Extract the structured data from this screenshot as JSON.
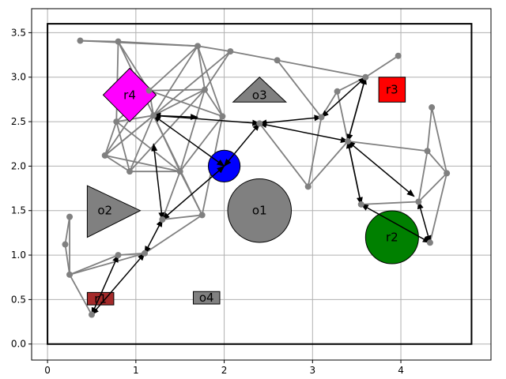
{
  "chart_data": {
    "type": "scatter",
    "title": "",
    "xlabel": "",
    "ylabel": "",
    "xlim": [
      -0.18,
      5.02
    ],
    "ylim": [
      -0.18,
      3.77
    ],
    "xticks": [
      0,
      1,
      2,
      3,
      4
    ],
    "yticks": [
      0.0,
      0.5,
      1.0,
      1.5,
      2.0,
      2.5,
      3.0,
      3.5
    ],
    "xtick_labels": [
      "0",
      "1",
      "2",
      "3",
      "4"
    ],
    "ytick_labels": [
      "0.0",
      "0.5",
      "1.0",
      "1.5",
      "2.0",
      "2.5",
      "3.0",
      "3.5"
    ],
    "grid": true,
    "boundary": [
      [
        0,
        0
      ],
      [
        4.8,
        0
      ],
      [
        4.8,
        3.6
      ],
      [
        0,
        3.6
      ]
    ],
    "colors": {
      "grid": "#b0b0b0",
      "edge": "#808080",
      "node": "#808080",
      "path": "#000000",
      "robot": "#0000ff",
      "obstacle": "#808080",
      "r1": "#a52a2a",
      "r2": "#008000",
      "r3": "#ff0000",
      "r4": "#ff00ff"
    },
    "robot": {
      "x": 2.0,
      "y": 2.0,
      "r": 0.18
    },
    "regions": [
      {
        "label": "r1",
        "shape": "rect",
        "x": 0.45,
        "y": 0.44,
        "w": 0.3,
        "h": 0.14,
        "color": "#a52a2a"
      },
      {
        "label": "r2",
        "shape": "circle",
        "x": 3.9,
        "y": 1.2,
        "r": 0.3,
        "color": "#008000"
      },
      {
        "label": "r3",
        "shape": "rect",
        "x": 3.75,
        "y": 2.72,
        "w": 0.3,
        "h": 0.28,
        "color": "#ff0000"
      },
      {
        "label": "r4",
        "shape": "diamond",
        "x": 0.93,
        "y": 2.8,
        "rx": 0.3,
        "ry": 0.3,
        "color": "#ff00ff"
      }
    ],
    "obstacles": [
      {
        "label": "o1",
        "shape": "circle",
        "x": 2.4,
        "y": 1.5,
        "r": 0.36
      },
      {
        "label": "o2",
        "shape": "triangle",
        "points": [
          [
            0.45,
            1.78
          ],
          [
            0.45,
            1.2
          ],
          [
            1.05,
            1.5
          ]
        ],
        "lx": 0.65,
        "ly": 1.5
      },
      {
        "label": "o3",
        "shape": "triangle",
        "points": [
          [
            2.1,
            2.72
          ],
          [
            2.7,
            2.72
          ],
          [
            2.4,
            3.0
          ]
        ],
        "lx": 2.4,
        "ly": 2.8
      },
      {
        "label": "o4",
        "shape": "rect",
        "x": 1.65,
        "y": 0.45,
        "w": 0.3,
        "h": 0.14,
        "lx": 1.8,
        "ly": 0.52
      }
    ],
    "nodes": [
      [
        0.37,
        3.41
      ],
      [
        0.8,
        3.4
      ],
      [
        1.7,
        3.35
      ],
      [
        2.07,
        3.29
      ],
      [
        2.6,
        3.19
      ],
      [
        3.97,
        3.24
      ],
      [
        1.78,
        2.86
      ],
      [
        1.15,
        2.85
      ],
      [
        0.78,
        2.5
      ],
      [
        1.2,
        2.57
      ],
      [
        1.98,
        2.56
      ],
      [
        2.4,
        2.48
      ],
      [
        3.28,
        2.84
      ],
      [
        3.6,
        3.0
      ],
      [
        4.35,
        2.66
      ],
      [
        0.65,
        2.12
      ],
      [
        0.93,
        1.94
      ],
      [
        1.5,
        1.94
      ],
      [
        3.1,
        2.55
      ],
      [
        3.4,
        2.28
      ],
      [
        4.3,
        2.17
      ],
      [
        4.52,
        1.92
      ],
      [
        2.95,
        1.77
      ],
      [
        3.55,
        1.57
      ],
      [
        4.2,
        1.6
      ],
      [
        4.33,
        1.14
      ],
      [
        1.3,
        1.4
      ],
      [
        1.75,
        1.45
      ],
      [
        0.8,
        1.0
      ],
      [
        1.1,
        1.02
      ],
      [
        0.25,
        1.43
      ],
      [
        0.2,
        1.12
      ],
      [
        0.25,
        0.78
      ],
      [
        0.5,
        0.33
      ]
    ],
    "edges": [
      [
        0,
        1
      ],
      [
        0,
        2
      ],
      [
        1,
        2
      ],
      [
        2,
        3
      ],
      [
        3,
        4
      ],
      [
        1,
        7
      ],
      [
        1,
        8
      ],
      [
        1,
        9
      ],
      [
        2,
        6
      ],
      [
        2,
        7
      ],
      [
        2,
        9
      ],
      [
        2,
        10
      ],
      [
        3,
        6
      ],
      [
        3,
        9
      ],
      [
        6,
        7
      ],
      [
        6,
        9
      ],
      [
        6,
        10
      ],
      [
        6,
        17
      ],
      [
        7,
        8
      ],
      [
        7,
        9
      ],
      [
        7,
        15
      ],
      [
        8,
        9
      ],
      [
        8,
        15
      ],
      [
        8,
        16
      ],
      [
        8,
        17
      ],
      [
        9,
        15
      ],
      [
        9,
        16
      ],
      [
        9,
        17
      ],
      [
        10,
        17
      ],
      [
        15,
        16
      ],
      [
        15,
        17
      ],
      [
        16,
        17
      ],
      [
        9,
        27
      ],
      [
        10,
        27
      ],
      [
        17,
        27
      ],
      [
        4,
        13
      ],
      [
        4,
        18
      ],
      [
        5,
        13
      ],
      [
        12,
        13
      ],
      [
        12,
        18
      ],
      [
        12,
        19
      ],
      [
        13,
        19
      ],
      [
        18,
        22
      ],
      [
        22,
        19
      ],
      [
        11,
        22
      ],
      [
        14,
        20
      ],
      [
        14,
        21
      ],
      [
        20,
        21
      ],
      [
        19,
        20
      ],
      [
        20,
        24
      ],
      [
        21,
        24
      ],
      [
        24,
        23
      ],
      [
        21,
        25
      ],
      [
        23,
        19
      ],
      [
        17,
        26
      ],
      [
        26,
        27
      ],
      [
        28,
        29
      ],
      [
        29,
        27
      ],
      [
        30,
        31
      ],
      [
        31,
        32
      ],
      [
        32,
        33
      ],
      [
        30,
        32
      ],
      [
        28,
        32
      ],
      [
        32,
        29
      ],
      [
        15,
        9
      ],
      [
        7,
        10
      ],
      [
        6,
        16
      ]
    ],
    "path_edges": [
      [
        [
          0.5,
          0.33
        ],
        [
          0.8,
          1.0
        ]
      ],
      [
        [
          0.5,
          0.33
        ],
        [
          1.1,
          1.02
        ]
      ],
      [
        [
          1.1,
          1.02
        ],
        [
          1.3,
          1.4
        ]
      ],
      [
        [
          1.3,
          1.4
        ],
        [
          2.0,
          2.0
        ]
      ],
      [
        [
          1.3,
          1.4
        ],
        [
          1.2,
          2.25
        ]
      ],
      [
        [
          1.2,
          2.57
        ],
        [
          2.0,
          2.0
        ]
      ],
      [
        [
          1.2,
          2.57
        ],
        [
          1.7,
          2.55
        ]
      ],
      [
        [
          1.2,
          2.57
        ],
        [
          2.4,
          2.48
        ]
      ],
      [
        [
          2.0,
          2.0
        ],
        [
          2.4,
          2.48
        ]
      ],
      [
        [
          2.4,
          2.48
        ],
        [
          3.4,
          2.28
        ]
      ],
      [
        [
          2.4,
          2.48
        ],
        [
          3.1,
          2.55
        ]
      ],
      [
        [
          3.1,
          2.55
        ],
        [
          3.6,
          3.0
        ]
      ],
      [
        [
          3.6,
          3.0
        ],
        [
          3.4,
          2.28
        ]
      ],
      [
        [
          3.4,
          2.28
        ],
        [
          3.55,
          1.57
        ]
      ],
      [
        [
          3.4,
          2.28
        ],
        [
          4.15,
          1.66
        ]
      ],
      [
        [
          3.55,
          1.57
        ],
        [
          4.33,
          1.14
        ]
      ],
      [
        [
          4.2,
          1.6
        ],
        [
          4.33,
          1.14
        ]
      ]
    ]
  }
}
